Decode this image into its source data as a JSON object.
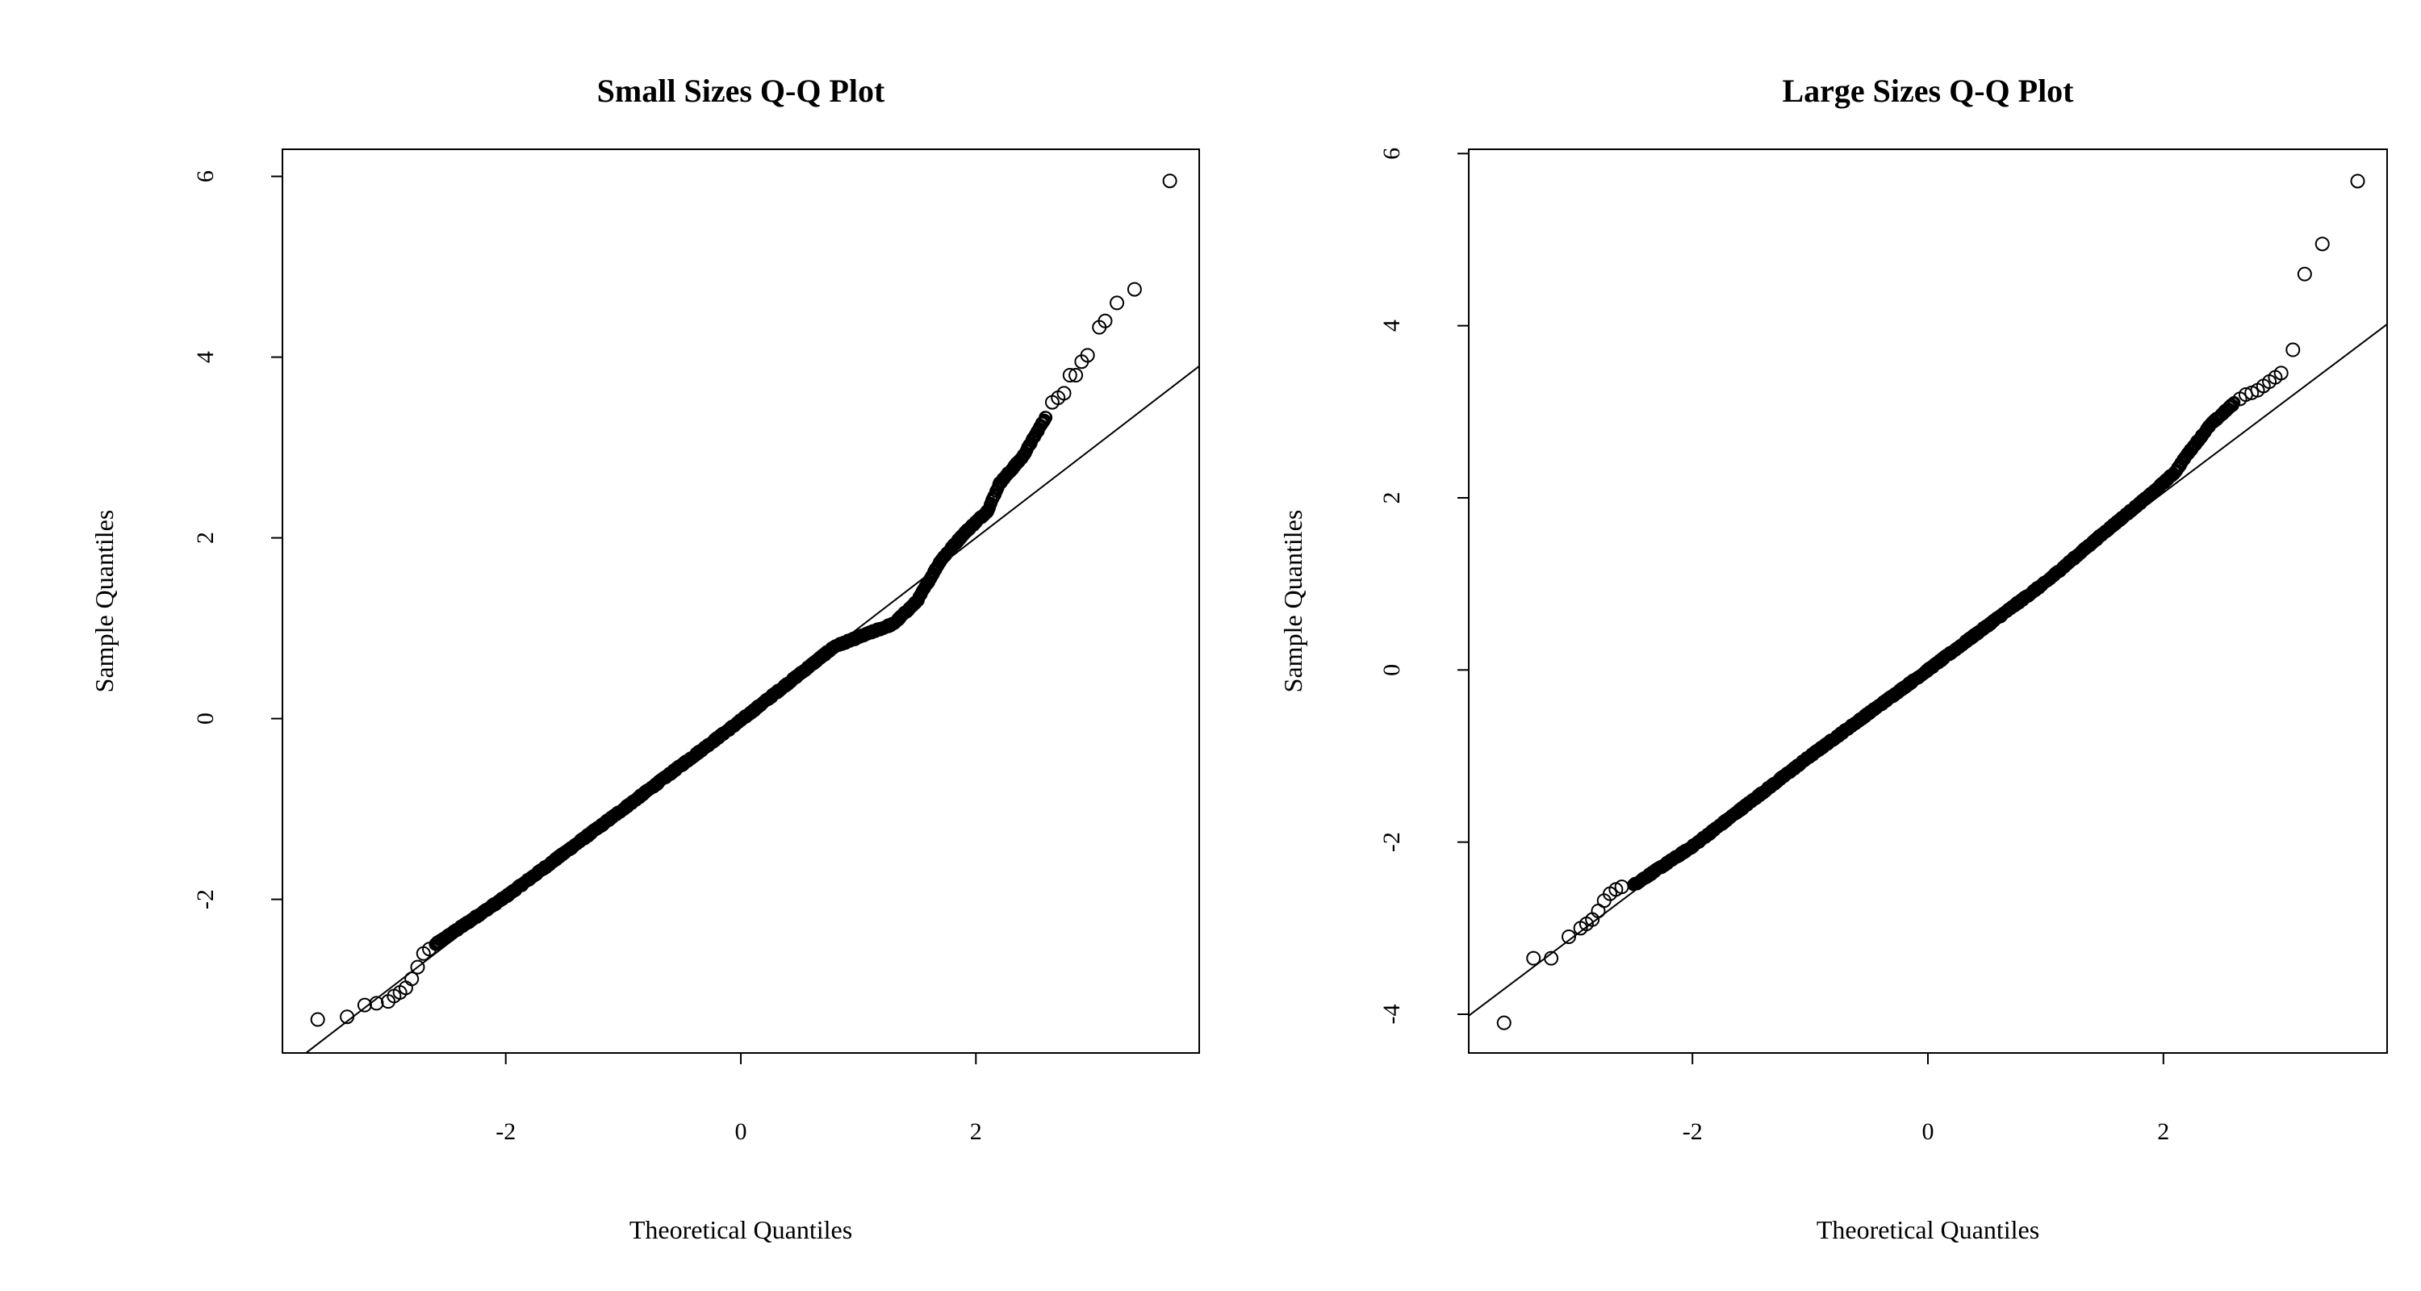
{
  "chart_data": [
    {
      "type": "scatter",
      "title": "Small Sizes Q-Q Plot",
      "xlabel": "Theoretical Quantiles",
      "ylabel": "Sample Quantiles",
      "xlim": [
        -3.9,
        3.9
      ],
      "ylim": [
        -3.7,
        6.3
      ],
      "x_ticks": [
        -2,
        0,
        2
      ],
      "y_ticks": [
        -2,
        0,
        2,
        4,
        6
      ],
      "grid": false,
      "marker": "open-circle",
      "reference_line": {
        "intercept": 0,
        "slope": 1.0
      },
      "curve_knots": [
        [
          -2.6,
          -2.5
        ],
        [
          -2.0,
          -1.97
        ],
        [
          -1.0,
          -1.0
        ],
        [
          0.0,
          -0.02
        ],
        [
          0.8,
          0.8
        ],
        [
          1.0,
          0.9
        ],
        [
          1.3,
          1.05
        ],
        [
          1.5,
          1.3
        ],
        [
          1.7,
          1.75
        ],
        [
          1.9,
          2.05
        ],
        [
          2.1,
          2.3
        ],
        [
          2.2,
          2.6
        ],
        [
          2.4,
          2.9
        ],
        [
          2.6,
          3.35
        ]
      ],
      "tail_points": [
        [
          -3.6,
          -3.33
        ],
        [
          -3.35,
          -3.3
        ],
        [
          -3.2,
          -3.17
        ],
        [
          -3.1,
          -3.15
        ],
        [
          -3.0,
          -3.13
        ],
        [
          -2.95,
          -3.07
        ],
        [
          -2.9,
          -3.03
        ],
        [
          -2.85,
          -2.98
        ],
        [
          -2.8,
          -2.88
        ],
        [
          -2.75,
          -2.75
        ],
        [
          -2.7,
          -2.6
        ],
        [
          -2.65,
          -2.55
        ],
        [
          2.65,
          3.5
        ],
        [
          2.7,
          3.55
        ],
        [
          2.75,
          3.6
        ],
        [
          2.8,
          3.8
        ],
        [
          2.85,
          3.8
        ],
        [
          2.9,
          3.95
        ],
        [
          2.95,
          4.02
        ],
        [
          3.05,
          4.33
        ],
        [
          3.1,
          4.4
        ],
        [
          3.2,
          4.6
        ],
        [
          3.35,
          4.75
        ],
        [
          3.65,
          5.95
        ]
      ]
    },
    {
      "type": "scatter",
      "title": "Large Sizes Q-Q Plot",
      "xlabel": "Theoretical Quantiles",
      "ylabel": "Sample Quantiles",
      "xlim": [
        -3.9,
        3.9
      ],
      "ylim": [
        -4.45,
        6.05
      ],
      "x_ticks": [
        -2,
        0,
        2
      ],
      "y_ticks": [
        -4,
        -2,
        0,
        2,
        4,
        6
      ],
      "grid": false,
      "marker": "open-circle",
      "reference_line": {
        "intercept": 0,
        "slope": 1.03
      },
      "curve_knots": [
        [
          -2.5,
          -2.5
        ],
        [
          -2.0,
          -2.05
        ],
        [
          -1.0,
          -1.0
        ],
        [
          0.0,
          0.0
        ],
        [
          1.0,
          1.02
        ],
        [
          1.5,
          1.6
        ],
        [
          1.9,
          2.05
        ],
        [
          2.1,
          2.3
        ],
        [
          2.2,
          2.5
        ],
        [
          2.4,
          2.85
        ],
        [
          2.6,
          3.1
        ]
      ],
      "tail_points": [
        [
          -3.6,
          -4.1
        ],
        [
          -3.35,
          -3.35
        ],
        [
          -3.2,
          -3.35
        ],
        [
          -3.05,
          -3.1
        ],
        [
          -2.95,
          -3.0
        ],
        [
          -2.9,
          -2.95
        ],
        [
          -2.85,
          -2.9
        ],
        [
          -2.8,
          -2.8
        ],
        [
          -2.75,
          -2.68
        ],
        [
          -2.7,
          -2.6
        ],
        [
          -2.65,
          -2.55
        ],
        [
          -2.6,
          -2.52
        ],
        [
          2.65,
          3.15
        ],
        [
          2.7,
          3.2
        ],
        [
          2.75,
          3.22
        ],
        [
          2.8,
          3.25
        ],
        [
          2.85,
          3.3
        ],
        [
          2.9,
          3.35
        ],
        [
          2.95,
          3.4
        ],
        [
          3.0,
          3.45
        ],
        [
          3.1,
          3.72
        ],
        [
          3.2,
          4.6
        ],
        [
          3.35,
          4.95
        ],
        [
          3.65,
          5.68
        ]
      ]
    }
  ]
}
